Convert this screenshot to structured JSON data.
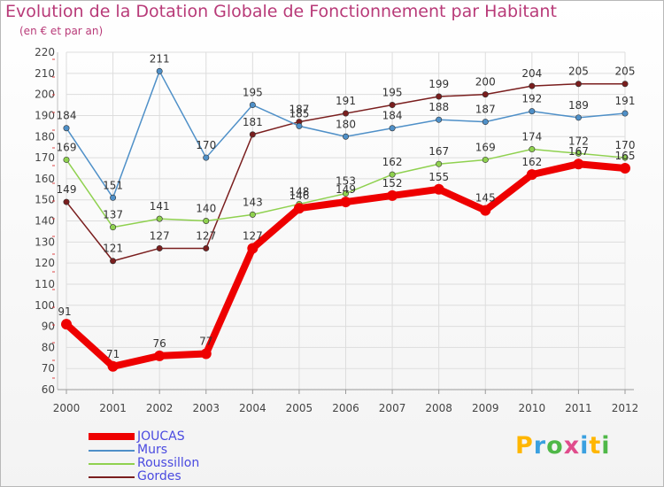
{
  "title": "Evolution de la Dotation Globale de Fonctionnement par Habitant",
  "subtitle": "(en € et par an)",
  "colors": {
    "title": "#b83a78",
    "axis": "#9a9a9a",
    "grid": "#dddddd",
    "label": "#444444",
    "legend_text": "#4a4ae0"
  },
  "logo": {
    "letters": [
      "P",
      "r",
      "o",
      "x",
      "i",
      "t",
      "i"
    ],
    "colors": [
      "#ffb600",
      "#3aa0e0",
      "#4fb848",
      "#e04c8c",
      "#3aa0e0",
      "#ffb600",
      "#4fb848"
    ]
  },
  "chart_data": {
    "type": "line",
    "title": "Evolution de la Dotation Globale de Fonctionnement par Habitant",
    "subtitle": "(en € et par an)",
    "xlabel": "",
    "ylabel": "",
    "x": [
      "2000",
      "2001",
      "2002",
      "2003",
      "2004",
      "2005",
      "2006",
      "2007",
      "2008",
      "2009",
      "2010",
      "2011",
      "2012"
    ],
    "ylim": [
      60,
      220
    ],
    "yticks": [
      60,
      70,
      80,
      90,
      100,
      110,
      120,
      130,
      140,
      150,
      160,
      170,
      180,
      190,
      200,
      210,
      220
    ],
    "grid": true,
    "legend_position": "bottom-left",
    "series": [
      {
        "name": "JOUCAS",
        "color": "#ee0000",
        "values": [
          91,
          71,
          76,
          77,
          127,
          146,
          149,
          152,
          155,
          145,
          162,
          167,
          165
        ]
      },
      {
        "name": "Murs",
        "color": "#4f90c8",
        "values": [
          184,
          151,
          211,
          170,
          195,
          185,
          180,
          184,
          188,
          187,
          192,
          189,
          191
        ]
      },
      {
        "name": "Roussillon",
        "color": "#8fd14f",
        "values": [
          169,
          137,
          141,
          140,
          143,
          148,
          153,
          162,
          167,
          169,
          174,
          172,
          170
        ]
      },
      {
        "name": "Gordes",
        "color": "#7a1e1e",
        "values": [
          149,
          121,
          127,
          127,
          181,
          187,
          191,
          195,
          199,
          200,
          204,
          205,
          205
        ]
      }
    ]
  }
}
